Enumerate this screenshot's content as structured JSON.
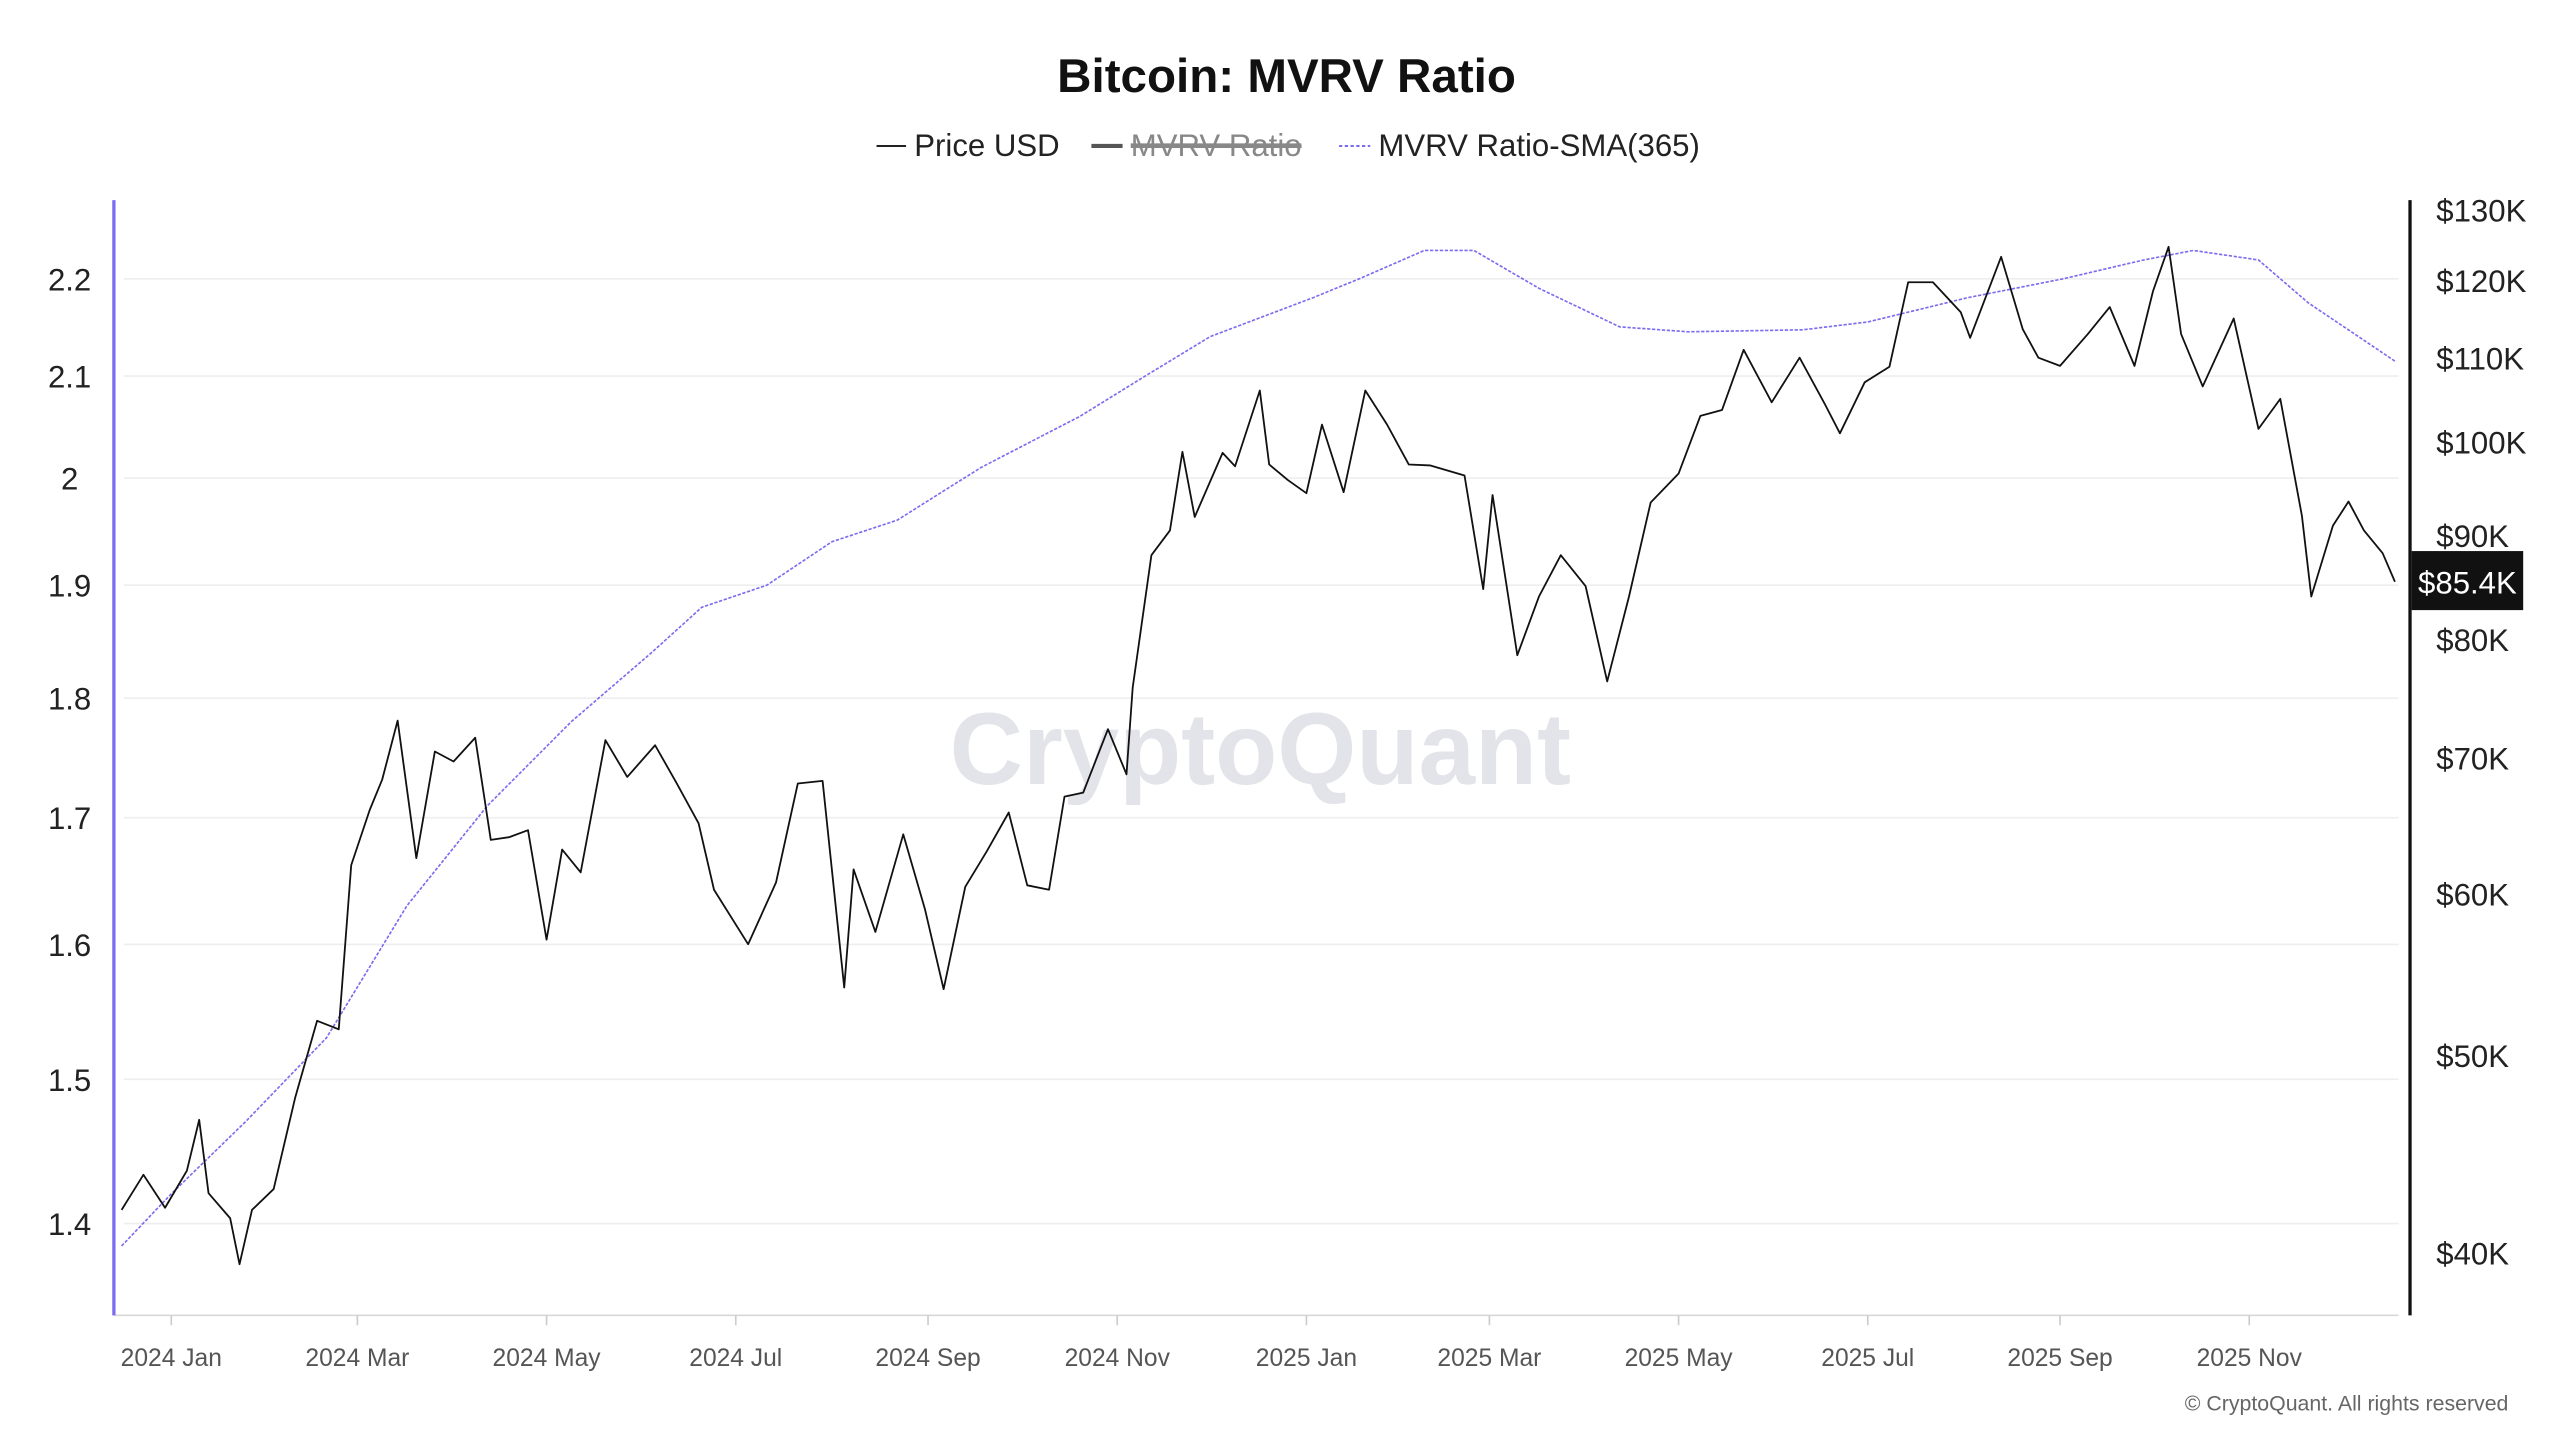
{
  "chart_data": {
    "type": "line",
    "title": "Bitcoin: MVRV Ratio",
    "legend": {
      "placement": "top-center",
      "items": [
        {
          "name": "Price USD",
          "color": "#222222",
          "hidden": false
        },
        {
          "name": "MVRV Ratio",
          "color": "#555555",
          "hidden": true
        },
        {
          "name": "MVRV Ratio-SMA(365)",
          "color": "#7b6cf0",
          "hidden": false,
          "dashed": true
        }
      ]
    },
    "x_ticks": [
      "2024 Jan",
      "2024 Mar",
      "2024 May",
      "2024 Jul",
      "2024 Sep",
      "2024 Nov",
      "2025 Jan",
      "2025 Mar",
      "2025 May",
      "2025 Jul",
      "2025 Sep",
      "2025 Nov"
    ],
    "x_tick_dates": [
      "2024-01-01",
      "2024-03-01",
      "2024-05-01",
      "2024-07-01",
      "2024-09-01",
      "2024-11-01",
      "2025-01-01",
      "2025-03-01",
      "2025-05-01",
      "2025-07-01",
      "2025-09-01",
      "2025-11-01"
    ],
    "left_axis": {
      "scale": "log",
      "ticks": [
        "2.2",
        "2.1",
        "2",
        "1.9",
        "1.8",
        "1.7",
        "1.6",
        "1.5",
        "1.4"
      ],
      "tick_values": [
        2.2,
        2.1,
        2.0,
        1.9,
        1.8,
        1.7,
        1.6,
        1.5,
        1.4
      ],
      "range": [
        1.35,
        2.3
      ],
      "color": "#7b6cf0"
    },
    "right_axis": {
      "scale": "log",
      "ticks": [
        "$130K",
        "$120K",
        "$110K",
        "$100K",
        "$90K",
        "$80K",
        "$70K",
        "$60K",
        "$50K",
        "$40K"
      ],
      "tick_values": [
        130000,
        120000,
        110000,
        100000,
        90000,
        80000,
        70000,
        60000,
        50000,
        40000
      ],
      "range": [
        36000,
        135000
      ]
    },
    "grid": true,
    "current_price_label": "$85.4K",
    "watermark": "CryptoQuant",
    "copyright": "© CryptoQuant. All rights reserved",
    "series": [
      {
        "name": "Price USD",
        "axis": "right",
        "points": [
          [
            "2023-12-16",
            42000
          ],
          [
            "2023-12-23",
            43700
          ],
          [
            "2023-12-30",
            42100
          ],
          [
            "2024-01-06",
            43900
          ],
          [
            "2024-01-10",
            46500
          ],
          [
            "2024-01-13",
            42800
          ],
          [
            "2024-01-20",
            41600
          ],
          [
            "2024-01-23",
            39500
          ],
          [
            "2024-01-27",
            42000
          ],
          [
            "2024-02-03",
            43000
          ],
          [
            "2024-02-10",
            47700
          ],
          [
            "2024-02-17",
            52000
          ],
          [
            "2024-02-24",
            51500
          ],
          [
            "2024-02-28",
            62000
          ],
          [
            "2024-03-05",
            66000
          ],
          [
            "2024-03-09",
            68300
          ],
          [
            "2024-03-14",
            73000
          ],
          [
            "2024-03-20",
            62500
          ],
          [
            "2024-03-26",
            70500
          ],
          [
            "2024-04-01",
            69700
          ],
          [
            "2024-04-08",
            71600
          ],
          [
            "2024-04-13",
            63800
          ],
          [
            "2024-04-19",
            64000
          ],
          [
            "2024-04-25",
            64500
          ],
          [
            "2024-05-01",
            57000
          ],
          [
            "2024-05-06",
            63100
          ],
          [
            "2024-05-12",
            61500
          ],
          [
            "2024-05-20",
            71400
          ],
          [
            "2024-05-27",
            68500
          ],
          [
            "2024-06-05",
            71000
          ],
          [
            "2024-06-12",
            68000
          ],
          [
            "2024-06-19",
            65000
          ],
          [
            "2024-06-24",
            60300
          ],
          [
            "2024-07-05",
            56700
          ],
          [
            "2024-07-14",
            60800
          ],
          [
            "2024-07-21",
            68000
          ],
          [
            "2024-07-29",
            68200
          ],
          [
            "2024-08-05",
            54000
          ],
          [
            "2024-08-08",
            61700
          ],
          [
            "2024-08-15",
            57500
          ],
          [
            "2024-08-24",
            64200
          ],
          [
            "2024-08-31",
            59000
          ],
          [
            "2024-09-06",
            53900
          ],
          [
            "2024-09-13",
            60500
          ],
          [
            "2024-09-20",
            63000
          ],
          [
            "2024-09-27",
            65800
          ],
          [
            "2024-10-03",
            60600
          ],
          [
            "2024-10-10",
            60300
          ],
          [
            "2024-10-15",
            67000
          ],
          [
            "2024-10-21",
            67300
          ],
          [
            "2024-10-29",
            72300
          ],
          [
            "2024-11-04",
            68700
          ],
          [
            "2024-11-06",
            75800
          ],
          [
            "2024-11-12",
            88000
          ],
          [
            "2024-11-18",
            90500
          ],
          [
            "2024-11-22",
            98900
          ],
          [
            "2024-11-26",
            91900
          ],
          [
            "2024-12-05",
            98800
          ],
          [
            "2024-12-09",
            97300
          ],
          [
            "2024-12-17",
            106000
          ],
          [
            "2024-12-20",
            97500
          ],
          [
            "2024-12-26",
            95800
          ],
          [
            "2025-01-01",
            94400
          ],
          [
            "2025-01-06",
            102000
          ],
          [
            "2025-01-13",
            94500
          ],
          [
            "2025-01-20",
            106000
          ],
          [
            "2025-01-27",
            102000
          ],
          [
            "2025-02-03",
            97500
          ],
          [
            "2025-02-10",
            97400
          ],
          [
            "2025-02-21",
            96300
          ],
          [
            "2025-02-27",
            84700
          ],
          [
            "2025-03-02",
            94200
          ],
          [
            "2025-03-10",
            78600
          ],
          [
            "2025-03-17",
            84000
          ],
          [
            "2025-03-24",
            88000
          ],
          [
            "2025-04-01",
            85000
          ],
          [
            "2025-04-08",
            76300
          ],
          [
            "2025-04-15",
            84000
          ],
          [
            "2025-04-22",
            93400
          ],
          [
            "2025-05-01",
            96500
          ],
          [
            "2025-05-08",
            103000
          ],
          [
            "2025-05-15",
            103700
          ],
          [
            "2025-05-22",
            111000
          ],
          [
            "2025-05-31",
            104600
          ],
          [
            "2025-06-09",
            110000
          ],
          [
            "2025-06-17",
            104500
          ],
          [
            "2025-06-22",
            101000
          ],
          [
            "2025-06-30",
            107000
          ],
          [
            "2025-07-08",
            108900
          ],
          [
            "2025-07-14",
            119800
          ],
          [
            "2025-07-22",
            119800
          ],
          [
            "2025-07-31",
            115800
          ],
          [
            "2025-08-03",
            112500
          ],
          [
            "2025-08-13",
            123300
          ],
          [
            "2025-08-20",
            113600
          ],
          [
            "2025-08-25",
            110000
          ],
          [
            "2025-09-01",
            109000
          ],
          [
            "2025-09-10",
            113000
          ],
          [
            "2025-09-17",
            116500
          ],
          [
            "2025-09-25",
            109000
          ],
          [
            "2025-10-01",
            118600
          ],
          [
            "2025-10-06",
            124700
          ],
          [
            "2025-10-10",
            113000
          ],
          [
            "2025-10-17",
            106500
          ],
          [
            "2025-10-27",
            115000
          ],
          [
            "2025-11-04",
            101500
          ],
          [
            "2025-11-11",
            105000
          ],
          [
            "2025-11-18",
            92000
          ],
          [
            "2025-11-21",
            84000
          ],
          [
            "2025-11-28",
            91000
          ],
          [
            "2025-12-03",
            93500
          ],
          [
            "2025-12-08",
            90500
          ],
          [
            "2025-12-14",
            88200
          ],
          [
            "2025-12-18",
            85400
          ]
        ]
      },
      {
        "name": "MVRV Ratio-SMA(365)",
        "axis": "left",
        "points": [
          [
            "2023-12-16",
            1.385
          ],
          [
            "2024-01-01",
            1.42
          ],
          [
            "2024-01-25",
            1.47
          ],
          [
            "2024-02-20",
            1.53
          ],
          [
            "2024-03-17",
            1.63
          ],
          [
            "2024-04-12",
            1.71
          ],
          [
            "2024-05-09",
            1.78
          ],
          [
            "2024-06-04",
            1.84
          ],
          [
            "2024-06-20",
            1.88
          ],
          [
            "2024-07-11",
            1.9
          ],
          [
            "2024-08-01",
            1.94
          ],
          [
            "2024-08-22",
            1.96
          ],
          [
            "2024-09-18",
            2.01
          ],
          [
            "2024-10-20",
            2.06
          ],
          [
            "2024-11-10",
            2.1
          ],
          [
            "2024-12-01",
            2.14
          ],
          [
            "2025-01-03",
            2.18
          ],
          [
            "2025-01-18",
            2.2
          ],
          [
            "2025-02-08",
            2.23
          ],
          [
            "2025-02-24",
            2.23
          ],
          [
            "2025-03-17",
            2.19
          ],
          [
            "2025-04-12",
            2.15
          ],
          [
            "2025-05-04",
            2.145
          ],
          [
            "2025-06-10",
            2.147
          ],
          [
            "2025-07-01",
            2.155
          ],
          [
            "2025-08-02",
            2.18
          ],
          [
            "2025-09-02",
            2.2
          ],
          [
            "2025-09-28",
            2.22
          ],
          [
            "2025-10-14",
            2.23
          ],
          [
            "2025-11-04",
            2.22
          ],
          [
            "2025-11-20",
            2.175
          ],
          [
            "2025-12-18",
            2.115
          ]
        ]
      }
    ]
  }
}
